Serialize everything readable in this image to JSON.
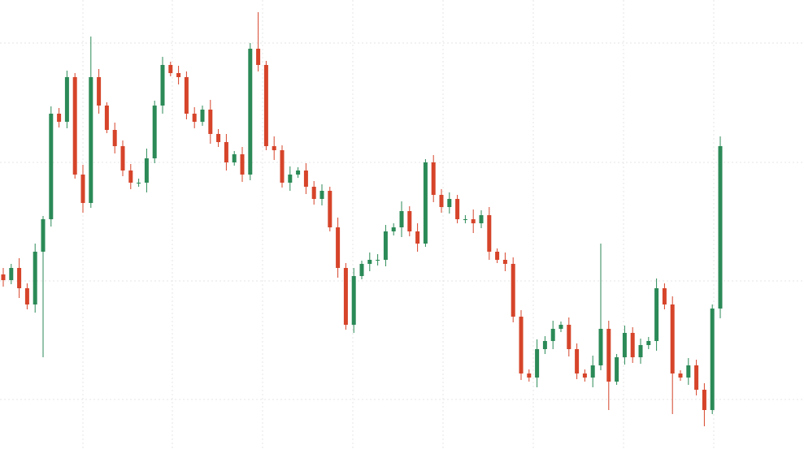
{
  "chart_data": {
    "type": "candlestick",
    "up_color": "#2b8a57",
    "down_color": "#d6442a",
    "ylim": [
      0,
      553
    ],
    "yticks": [
      61,
      207,
      353,
      500
    ],
    "grid": true,
    "open": [
      215,
      208,
      223,
      198,
      178,
      243,
      283,
      413,
      403,
      458,
      338,
      303,
      458,
      423,
      393,
      373,
      343,
      328,
      328,
      358,
      423,
      473,
      463,
      458,
      413,
      403,
      418,
      388,
      378,
      353,
      363,
      338,
      493,
      473,
      373,
      368,
      328,
      338,
      343,
      323,
      308,
      318,
      273,
      223,
      153,
      213,
      228,
      233,
      233,
      268,
      273,
      293,
      268,
      253,
      353,
      313,
      298,
      308,
      283,
      283,
      278,
      288,
      243,
      233,
      228,
      163,
      93,
      88,
      123,
      133,
      148,
      153,
      123,
      93,
      88,
      103,
      148,
      83,
      113,
      143,
      113,
      128,
      133,
      198,
      178,
      93,
      88,
      103,
      73,
      48,
      173
    ],
    "high": [
      223,
      228,
      235,
      204,
      253,
      287,
      422,
      420,
      466,
      463,
      350,
      508,
      468,
      427,
      402,
      380,
      351,
      333,
      370,
      429,
      483,
      477,
      472,
      465,
      421,
      423,
      430,
      394,
      388,
      367,
      372,
      500,
      538,
      478,
      385,
      374,
      348,
      347,
      352,
      330,
      326,
      323,
      285,
      229,
      223,
      232,
      242,
      240,
      276,
      278,
      305,
      299,
      278,
      357,
      362,
      320,
      316,
      313,
      288,
      295,
      294,
      298,
      247,
      242,
      236,
      171,
      98,
      135,
      139,
      158,
      157,
      162,
      130,
      98,
      115,
      253,
      158,
      117,
      152,
      150,
      136,
      138,
      210,
      204,
      188,
      97,
      112,
      110,
      81,
      178,
      385
    ],
    "low": [
      200,
      203,
      186,
      172,
      168,
      113,
      274,
      396,
      395,
      333,
      291,
      297,
      413,
      389,
      364,
      336,
      320,
      323,
      316,
      352,
      413,
      459,
      449,
      406,
      395,
      398,
      376,
      372,
      343,
      349,
      329,
      331,
      465,
      368,
      356,
      322,
      318,
      334,
      314,
      301,
      300,
      268,
      211,
      147,
      143,
      209,
      219,
      226,
      225,
      263,
      261,
      262,
      243,
      249,
      304,
      291,
      290,
      278,
      278,
      266,
      272,
      233,
      229,
      219,
      156,
      85,
      83,
      76,
      117,
      123,
      144,
      114,
      86,
      83,
      76,
      97,
      48,
      79,
      104,
      106,
      105,
      123,
      121,
      172,
      43,
      84,
      79,
      66,
      28,
      43,
      161
    ],
    "close": [
      208,
      223,
      198,
      178,
      243,
      283,
      413,
      403,
      458,
      338,
      303,
      458,
      423,
      393,
      373,
      343,
      328,
      328,
      358,
      423,
      473,
      463,
      458,
      413,
      403,
      418,
      388,
      378,
      353,
      363,
      338,
      493,
      473,
      373,
      368,
      328,
      338,
      343,
      323,
      308,
      318,
      273,
      223,
      153,
      213,
      228,
      233,
      233,
      268,
      273,
      293,
      268,
      253,
      353,
      313,
      298,
      308,
      283,
      283,
      278,
      288,
      243,
      233,
      228,
      163,
      93,
      88,
      123,
      133,
      148,
      153,
      123,
      93,
      88,
      103,
      148,
      83,
      113,
      143,
      113,
      128,
      133,
      198,
      178,
      93,
      88,
      103,
      73,
      48,
      173,
      373
    ]
  }
}
